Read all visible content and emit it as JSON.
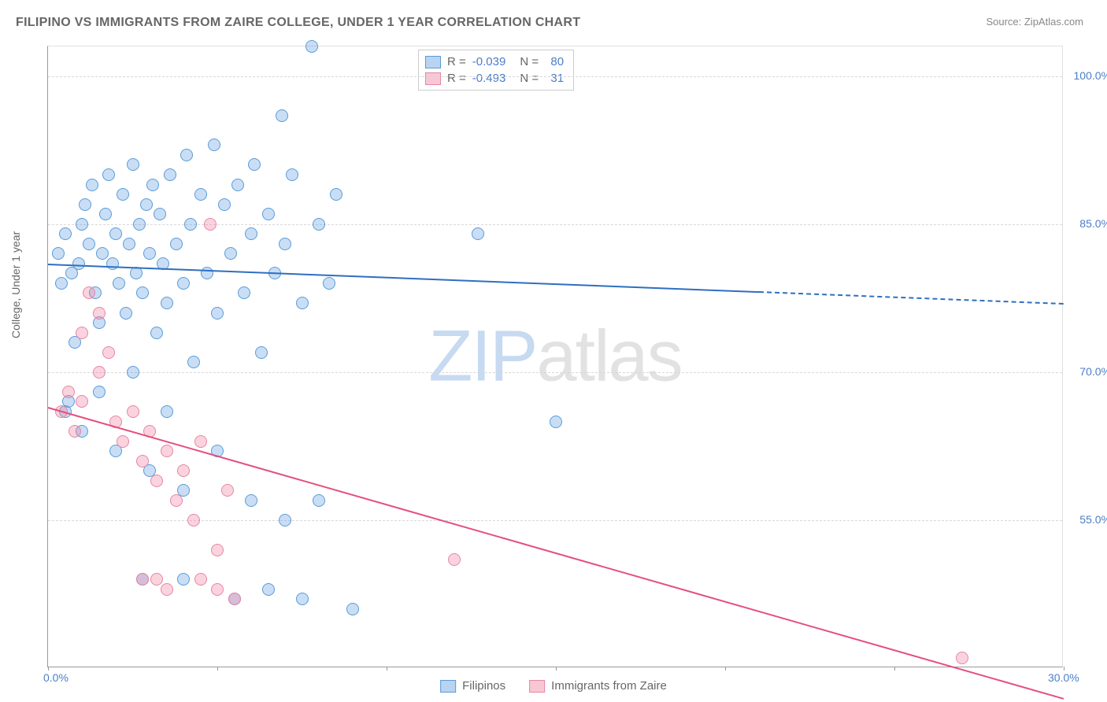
{
  "title": "FILIPINO VS IMMIGRANTS FROM ZAIRE COLLEGE, UNDER 1 YEAR CORRELATION CHART",
  "source": "Source: ZipAtlas.com",
  "ylabel": "College, Under 1 year",
  "watermark_a": "ZIP",
  "watermark_b": "atlas",
  "chart": {
    "type": "scatter",
    "xlim": [
      0,
      30
    ],
    "ylim": [
      40,
      103
    ],
    "yticks": [
      55.0,
      70.0,
      85.0,
      100.0
    ],
    "ytick_labels": [
      "55.0%",
      "70.0%",
      "85.0%",
      "100.0%"
    ],
    "xticks": [
      0,
      5,
      10,
      15,
      20,
      25,
      30
    ],
    "xtick_labels": [
      "0.0%",
      "",
      "",
      "",
      "",
      "",
      "30.0%"
    ],
    "series": [
      {
        "name": "Filipinos",
        "color_fill": "rgba(100,160,225,0.35)",
        "color_stroke": "#5a9bd8",
        "r": -0.039,
        "n": 80,
        "marker_radius": 8,
        "trend": {
          "y_start": 81.0,
          "y_end": 77.0,
          "solid_until_x": 21.0,
          "color": "#2e6fc0"
        },
        "points": [
          [
            0.3,
            82
          ],
          [
            0.4,
            79
          ],
          [
            0.5,
            84
          ],
          [
            0.6,
            67
          ],
          [
            0.7,
            80
          ],
          [
            0.8,
            73
          ],
          [
            0.9,
            81
          ],
          [
            1.0,
            85
          ],
          [
            1.1,
            87
          ],
          [
            1.2,
            83
          ],
          [
            1.3,
            89
          ],
          [
            1.4,
            78
          ],
          [
            1.5,
            75
          ],
          [
            1.6,
            82
          ],
          [
            1.7,
            86
          ],
          [
            1.8,
            90
          ],
          [
            1.9,
            81
          ],
          [
            2.0,
            84
          ],
          [
            2.1,
            79
          ],
          [
            2.2,
            88
          ],
          [
            2.3,
            76
          ],
          [
            2.4,
            83
          ],
          [
            2.5,
            91
          ],
          [
            2.6,
            80
          ],
          [
            2.7,
            85
          ],
          [
            2.8,
            78
          ],
          [
            2.9,
            87
          ],
          [
            3.0,
            82
          ],
          [
            3.1,
            89
          ],
          [
            3.2,
            74
          ],
          [
            3.3,
            86
          ],
          [
            3.4,
            81
          ],
          [
            3.5,
            77
          ],
          [
            3.6,
            90
          ],
          [
            3.8,
            83
          ],
          [
            4.0,
            79
          ],
          [
            4.1,
            92
          ],
          [
            4.2,
            85
          ],
          [
            4.3,
            71
          ],
          [
            4.5,
            88
          ],
          [
            4.7,
            80
          ],
          [
            4.9,
            93
          ],
          [
            5.0,
            76
          ],
          [
            5.2,
            87
          ],
          [
            5.4,
            82
          ],
          [
            5.6,
            89
          ],
          [
            5.8,
            78
          ],
          [
            6.0,
            84
          ],
          [
            6.1,
            91
          ],
          [
            6.3,
            72
          ],
          [
            6.5,
            86
          ],
          [
            6.7,
            80
          ],
          [
            6.9,
            96
          ],
          [
            7.0,
            83
          ],
          [
            7.2,
            90
          ],
          [
            7.5,
            77
          ],
          [
            7.8,
            103
          ],
          [
            8.0,
            85
          ],
          [
            8.3,
            79
          ],
          [
            8.5,
            88
          ],
          [
            0.5,
            66
          ],
          [
            1.0,
            64
          ],
          [
            1.5,
            68
          ],
          [
            2.0,
            62
          ],
          [
            2.5,
            70
          ],
          [
            3.0,
            60
          ],
          [
            3.5,
            66
          ],
          [
            4.0,
            58
          ],
          [
            5.0,
            62
          ],
          [
            6.0,
            57
          ],
          [
            6.5,
            48
          ],
          [
            7.0,
            55
          ],
          [
            7.5,
            47
          ],
          [
            8.0,
            57
          ],
          [
            12.7,
            84
          ],
          [
            15.0,
            65
          ],
          [
            2.8,
            49
          ],
          [
            4.0,
            49
          ],
          [
            5.5,
            47
          ],
          [
            9.0,
            46
          ]
        ]
      },
      {
        "name": "Immigrants from Zaire",
        "color_fill": "rgba(240,130,160,0.35)",
        "color_stroke": "#e686a5",
        "r": -0.493,
        "n": 31,
        "marker_radius": 8,
        "trend": {
          "y_start": 66.5,
          "y_end": 37.0,
          "solid_until_x": 30.0,
          "color": "#e54f7d"
        },
        "points": [
          [
            0.4,
            66
          ],
          [
            0.6,
            68
          ],
          [
            0.8,
            64
          ],
          [
            1.0,
            67
          ],
          [
            1.2,
            78
          ],
          [
            1.5,
            76
          ],
          [
            1.8,
            72
          ],
          [
            2.0,
            65
          ],
          [
            2.2,
            63
          ],
          [
            2.5,
            66
          ],
          [
            2.8,
            61
          ],
          [
            3.0,
            64
          ],
          [
            3.2,
            59
          ],
          [
            3.5,
            62
          ],
          [
            3.8,
            57
          ],
          [
            4.0,
            60
          ],
          [
            4.3,
            55
          ],
          [
            4.5,
            63
          ],
          [
            4.8,
            85
          ],
          [
            5.0,
            52
          ],
          [
            5.3,
            58
          ],
          [
            2.8,
            49
          ],
          [
            3.2,
            49
          ],
          [
            3.5,
            48
          ],
          [
            4.5,
            49
          ],
          [
            5.0,
            48
          ],
          [
            5.5,
            47
          ],
          [
            12.0,
            51
          ],
          [
            27.0,
            41
          ],
          [
            1.0,
            74
          ],
          [
            1.5,
            70
          ]
        ]
      }
    ]
  },
  "legend_bottom": [
    {
      "label": "Filipinos",
      "fill": "rgba(100,160,225,0.45)",
      "stroke": "#5a9bd8"
    },
    {
      "label": "Immigrants from Zaire",
      "fill": "rgba(240,130,160,0.45)",
      "stroke": "#e686a5"
    }
  ],
  "legend_box": {
    "rows": [
      {
        "fill": "rgba(100,160,225,0.45)",
        "stroke": "#5a9bd8",
        "r_label": "R =",
        "r_val": "-0.039",
        "n_label": "N =",
        "n_val": "80"
      },
      {
        "fill": "rgba(240,130,160,0.45)",
        "stroke": "#e686a5",
        "r_label": "R =",
        "r_val": "-0.493",
        "n_label": "N =",
        "n_val": "31"
      }
    ]
  }
}
